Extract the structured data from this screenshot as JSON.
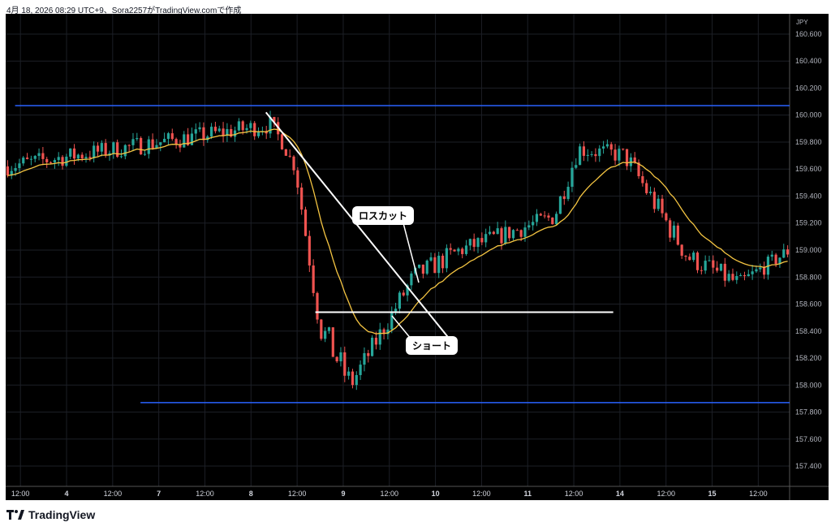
{
  "caption": "4月 18, 2026 08:29 UTC+9、Sora2257がTradingView.comで作成",
  "brand": "TradingView",
  "currency": "JPY",
  "annotations": {
    "losscut": "ロスカット",
    "short": "ショート"
  },
  "colors": {
    "up": "#26a69a",
    "down": "#ef5350",
    "ma": "#f5c542",
    "level": "#2962ff",
    "drawing": "#ffffff",
    "background": "#000000"
  },
  "chart_data": {
    "type": "candlestick",
    "y_ticks": [
      "160.600",
      "160.400",
      "160.200",
      "160.000",
      "159.800",
      "159.600",
      "159.400",
      "159.200",
      "159.000",
      "158.800",
      "158.600",
      "158.400",
      "158.200",
      "158.000",
      "157.800",
      "157.600",
      "157.400"
    ],
    "ylim": [
      157.25,
      160.75
    ],
    "x_ticks": [
      "12:00",
      "4",
      "12:00",
      "7",
      "12:00",
      "8",
      "12:00",
      "9",
      "12:00",
      "10",
      "12:00",
      "11",
      "12:00",
      "14",
      "12:00",
      "15",
      "12:00"
    ],
    "horizontal_levels": [
      160.07,
      157.87
    ],
    "short_entry_level": 158.54,
    "candles_segments": [
      {
        "from": 0.0,
        "to": 0.34,
        "start": 159.62,
        "end": 159.93,
        "wobble": 0.07
      },
      {
        "from": 0.34,
        "to": 0.37,
        "start": 159.93,
        "end": 159.6,
        "wobble": 0.05
      },
      {
        "from": 0.37,
        "to": 0.4,
        "start": 159.6,
        "end": 158.45,
        "wobble": 0.08
      },
      {
        "from": 0.4,
        "to": 0.44,
        "start": 158.45,
        "end": 158.0,
        "wobble": 0.12
      },
      {
        "from": 0.44,
        "to": 0.52,
        "start": 158.0,
        "end": 158.8,
        "wobble": 0.08
      },
      {
        "from": 0.52,
        "to": 0.58,
        "start": 158.8,
        "end": 159.0,
        "wobble": 0.08
      },
      {
        "from": 0.58,
        "to": 0.7,
        "start": 159.0,
        "end": 159.25,
        "wobble": 0.07
      },
      {
        "from": 0.7,
        "to": 0.73,
        "start": 159.25,
        "end": 159.75,
        "wobble": 0.08
      },
      {
        "from": 0.73,
        "to": 0.79,
        "start": 159.75,
        "end": 159.7,
        "wobble": 0.07
      },
      {
        "from": 0.79,
        "to": 0.87,
        "start": 159.7,
        "end": 158.95,
        "wobble": 0.09
      },
      {
        "from": 0.87,
        "to": 0.935,
        "start": 158.95,
        "end": 158.75,
        "wobble": 0.08
      },
      {
        "from": 0.935,
        "to": 1.0,
        "start": 158.75,
        "end": 159.0,
        "wobble": 0.06
      }
    ],
    "trendline": {
      "from": [
        0.332,
        160.02
      ],
      "to": [
        0.565,
        158.35
      ]
    },
    "short_line": {
      "from": [
        0.395,
        158.54
      ],
      "to": [
        0.775,
        158.54
      ]
    }
  }
}
